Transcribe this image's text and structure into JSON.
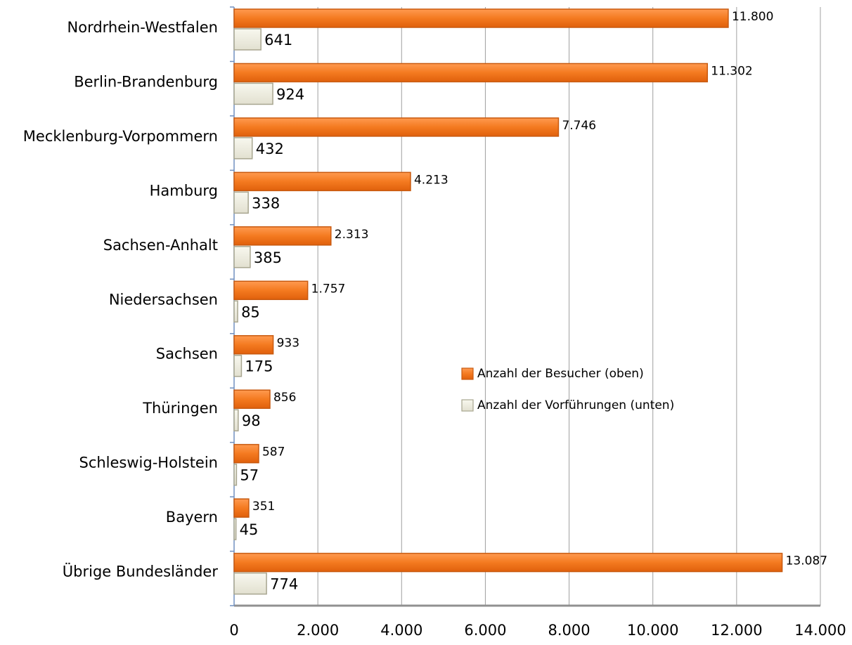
{
  "chart_data": {
    "type": "hbar",
    "categories": [
      "Nordrhein-Westfalen",
      "Berlin-Brandenburg",
      "Mecklenburg-Vorpommern",
      "Hamburg",
      "Sachsen-Anhalt",
      "Niedersachsen",
      "Sachsen",
      "Thüringen",
      "Schleswig-Holstein",
      "Bayern",
      "Übrige Bundesländer"
    ],
    "series": [
      {
        "name": "Anzahl der Besucher (oben)",
        "color": "#f47a20",
        "values": [
          11800,
          11302,
          7746,
          4213,
          2313,
          1757,
          933,
          856,
          587,
          351,
          13087
        ],
        "value_labels": [
          "11.800",
          "11.302",
          "7.746",
          "4.213",
          "2.313",
          "1.757",
          "933",
          "856",
          "587",
          "351",
          "13.087"
        ]
      },
      {
        "name": "Anzahl der Vorführungen (unten)",
        "color": "#ecebdf",
        "values": [
          641,
          924,
          432,
          338,
          385,
          85,
          175,
          98,
          57,
          45,
          774
        ]
      }
    ],
    "xlim": [
      0,
      14000
    ],
    "xticks": [
      0,
      {
        "value": 2000,
        "label": "2.000"
      },
      {
        "value": 4000,
        "label": "4.000"
      },
      {
        "value": 6000,
        "label": "6.000"
      },
      {
        "value": 8000,
        "label": "8.000"
      },
      {
        "value": 10000,
        "label": "10.000"
      },
      {
        "value": 12000,
        "label": "12.000"
      },
      {
        "value": 14000,
        "label": "14.000"
      }
    ],
    "grid": true
  }
}
